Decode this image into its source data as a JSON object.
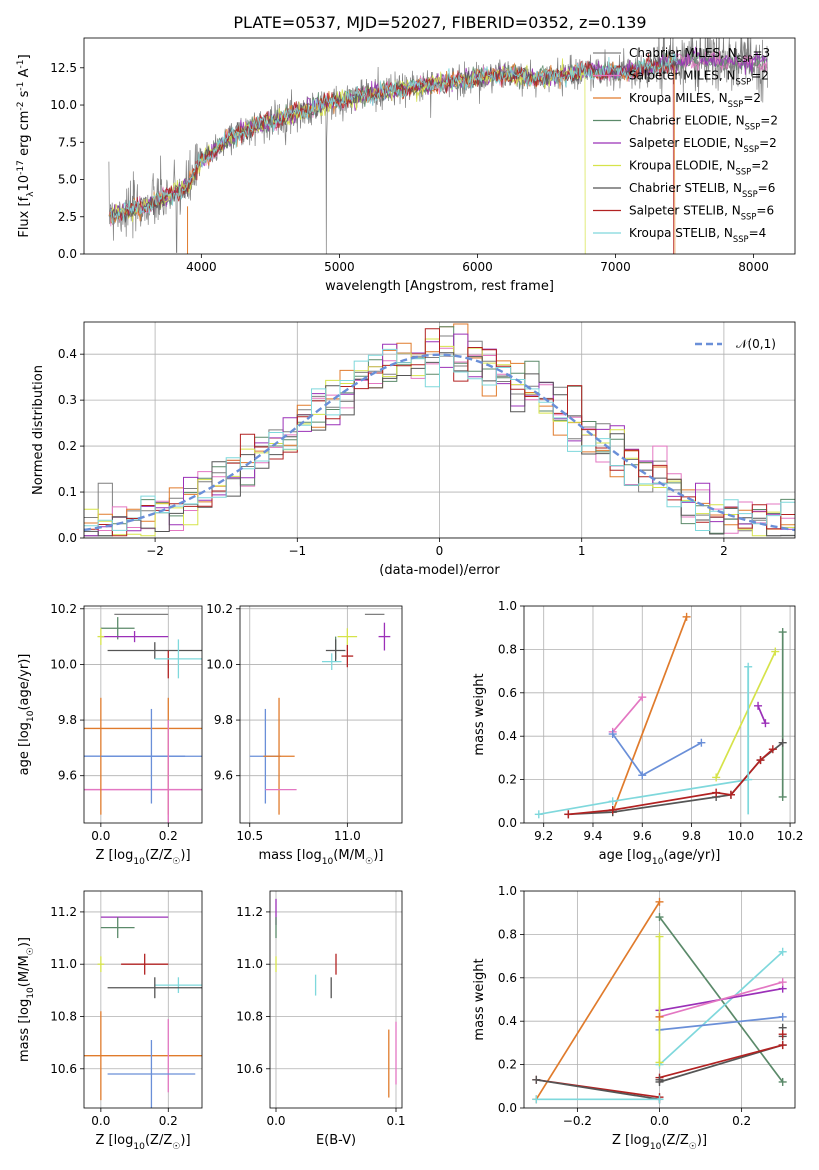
{
  "figure": {
    "title": "PLATE=0537, MJD=52027, FIBERID=0352, z=0.139"
  },
  "colors": {
    "Chabrier MILES": "#7f7f7f",
    "Salpeter MILES": "#e377c2",
    "Kroupa MILES": "#e07b2c",
    "Chabrier ELODIE": "#5b8a6a",
    "Salpeter ELODIE": "#9b30b8",
    "Kroupa ELODIE": "#d6e34a",
    "Chabrier STELIB": "#555555",
    "Salpeter STELIB": "#b22222",
    "Kroupa STELIB": "#7fd8dc",
    "normal_fit": "#6a8fd8"
  },
  "chart_data": [
    {
      "id": "spectrum",
      "type": "line",
      "xlabel": "wavelength [Angstrom, rest frame]",
      "ylabel": "Flux [f$_\\lambda$10$^{-17}$ erg cm$^{-2}$ s$^{-1}$ A$^{-1}$]",
      "xlim": [
        3150,
        8300
      ],
      "ylim": [
        0,
        14.5
      ],
      "xticks": [
        4000,
        5000,
        6000,
        7000,
        8000
      ],
      "yticks": [
        0.0,
        2.5,
        5.0,
        7.5,
        10.0,
        12.5
      ],
      "legend_position": "top-right",
      "legend": [
        "Chabrier MILES, N$_{SSP}$=3",
        "Salpeter MILES, N$_{SSP}$=2",
        "Kroupa MILES, N$_{SSP}$=2",
        "Chabrier ELODIE, N$_{SSP}$=2",
        "Salpeter ELODIE, N$_{SSP}$=2",
        "Kroupa ELODIE, N$_{SSP}$=2",
        "Chabrier STELIB, N$_{SSP}$=6",
        "Salpeter STELIB, N$_{SSP}$=6",
        "Kroupa STELIB, N$_{SSP}$=4"
      ],
      "continuum": {
        "x": [
          3330,
          3500,
          3700,
          3900,
          4000,
          4200,
          4400,
          4600,
          4800,
          5000,
          5200,
          5400,
          5600,
          5800,
          6000,
          6200,
          6400,
          6600,
          6800,
          7000,
          7200,
          7400,
          7600,
          7800,
          8000,
          8100
        ],
        "y": [
          2.7,
          2.9,
          3.6,
          4.6,
          6.2,
          7.8,
          8.6,
          9.2,
          9.8,
          10.3,
          10.7,
          11.0,
          11.3,
          11.5,
          11.8,
          12.1,
          11.8,
          12.0,
          12.3,
          12.2,
          12.4,
          12.8,
          13.1,
          12.9,
          12.9,
          12.8
        ]
      }
    },
    {
      "id": "residuals",
      "type": "histogram",
      "xlabel": "(data-model)/error",
      "ylabel": "Normed distribution",
      "xlim": [
        -2.5,
        2.5
      ],
      "ylim": [
        0,
        0.47
      ],
      "xticks": [
        -2,
        -1,
        0,
        1,
        2
      ],
      "yticks": [
        0.0,
        0.1,
        0.2,
        0.3,
        0.4
      ],
      "legend_position": "top-right",
      "legend": [
        "$\\mathcal{N}(0,1)$"
      ],
      "bins": 50
    },
    {
      "id": "age_vs_Z",
      "type": "errorbar",
      "xlabel": "Z [log$_{10}$(Z/Z$_\\odot$)]",
      "ylabel": "age  [log$_{10}$(age/yr)]",
      "xlim": [
        -0.05,
        0.3
      ],
      "ylim": [
        9.43,
        10.21
      ],
      "xticks": [
        0.0,
        0.2
      ],
      "yticks": [
        9.6,
        9.8,
        10.0,
        10.2
      ],
      "points": [
        {
          "model": "Chabrier MILES",
          "x": 0.12,
          "xerr": 0.08,
          "y": 10.18,
          "yerr": 0.0
        },
        {
          "model": "Salpeter MILES",
          "x": 0.2,
          "xerr": 0.0,
          "y": 9.55,
          "yerr": 0.12
        },
        {
          "model": "Kroupa MILES",
          "x": 0.0,
          "xerr": 0.0,
          "y": 9.67,
          "yerr": 0.21
        },
        {
          "model": "Chabrier ELODIE",
          "x": 0.05,
          "xerr": 0.05,
          "y": 10.13,
          "yerr": 0.04
        },
        {
          "model": "Salpeter ELODIE",
          "x": 0.1,
          "xerr": 0.1,
          "y": 10.1,
          "yerr": 0.02
        },
        {
          "model": "Kroupa ELODIE",
          "x": 0.0,
          "xerr": 0.01,
          "y": 10.1,
          "yerr": 0.03
        },
        {
          "model": "Chabrier STELIB",
          "x": 0.16,
          "xerr": 0.14,
          "y": 10.05,
          "yerr": 0.03
        },
        {
          "model": "Salpeter STELIB",
          "x": 0.2,
          "xerr": 0.0,
          "y": 10.0,
          "yerr": 0.05
        },
        {
          "model": "Kroupa STELIB",
          "x": 0.23,
          "xerr": 0.07,
          "y": 10.02,
          "yerr": 0.07
        },
        {
          "model": "normal_fit",
          "x": 0.15,
          "xerr": 0.15,
          "y": 9.67,
          "yerr": 0.17
        },
        {
          "model": "Kroupa MILES",
          "x": 0.2,
          "xerr": 0.0,
          "y": 9.67,
          "yerr": 0.21
        },
        {
          "model": "Salpeter MILES",
          "x": 0.2,
          "xerr": 0.0,
          "y": 9.62,
          "yerr": 0.18
        }
      ],
      "xlines": [
        {
          "model": "Kroupa MILES",
          "y": 9.77,
          "x0": -0.05,
          "x1": 0.3
        },
        {
          "model": "normal_fit",
          "y": 9.67,
          "x0": -0.05,
          "x1": 0.25
        },
        {
          "model": "Salpeter MILES",
          "y": 9.55,
          "x0": -0.05,
          "x1": 0.3
        }
      ]
    },
    {
      "id": "age_vs_mass",
      "type": "errorbar",
      "xlabel": "mass [log$_{10}$(M/M$_\\odot$)]",
      "ylabel": "",
      "xlim": [
        10.45,
        11.28
      ],
      "ylim": [
        9.43,
        10.21
      ],
      "xticks": [
        10.5,
        11.0
      ],
      "yticks": [
        9.6,
        9.8,
        10.0,
        10.2
      ],
      "points": [
        {
          "model": "Chabrier MILES",
          "x": 11.14,
          "xerr": 0.05,
          "y": 10.18,
          "yerr": 0.0
        },
        {
          "model": "Salpeter ELODIE",
          "x": 11.19,
          "xerr": 0.03,
          "y": 10.1,
          "yerr": 0.05
        },
        {
          "model": "Kroupa ELODIE",
          "x": 11.0,
          "xerr": 0.05,
          "y": 10.1,
          "yerr": 0.03
        },
        {
          "model": "Chabrier ELODIE",
          "x": 10.94,
          "xerr": 0.0,
          "y": 10.06,
          "yerr": 0.04
        },
        {
          "model": "Chabrier STELIB",
          "x": 10.94,
          "xerr": 0.05,
          "y": 10.05,
          "yerr": 0.04
        },
        {
          "model": "Salpeter STELIB",
          "x": 11.0,
          "xerr": 0.03,
          "y": 10.03,
          "yerr": 0.04
        },
        {
          "model": "Kroupa STELIB",
          "x": 10.92,
          "xerr": 0.05,
          "y": 10.01,
          "yerr": 0.03
        },
        {
          "model": "normal_fit",
          "x": 10.58,
          "xerr": 0.08,
          "y": 9.67,
          "yerr": 0.17
        },
        {
          "model": "Kroupa MILES",
          "x": 10.65,
          "xerr": 0.08,
          "y": 9.67,
          "yerr": 0.21
        },
        {
          "model": "Salpeter MILES",
          "x": 10.66,
          "xerr": 0.08,
          "y": 9.55,
          "yerr": 0.0
        }
      ]
    },
    {
      "id": "weight_vs_age",
      "type": "line",
      "xlabel": "age  [log$_{10}$(age/yr)]",
      "ylabel": "mass weight",
      "xlim": [
        9.12,
        10.22
      ],
      "ylim": [
        0,
        1.0
      ],
      "xticks": [
        9.2,
        9.4,
        9.6,
        9.8,
        10.0,
        10.2
      ],
      "yticks": [
        0.0,
        0.2,
        0.4,
        0.6,
        0.8,
        1.0
      ],
      "series": [
        {
          "model": "Salpeter MILES",
          "x": [
            9.48,
            9.6
          ],
          "y": [
            0.42,
            0.58
          ]
        },
        {
          "model": "Kroupa MILES",
          "x": [
            9.48,
            9.78
          ],
          "y": [
            0.05,
            0.95
          ]
        },
        {
          "model": "normal_fit",
          "x": [
            9.48,
            9.6,
            9.84
          ],
          "y": [
            0.41,
            0.22,
            0.37
          ]
        },
        {
          "model": "Kroupa STELIB",
          "x": [
            9.18,
            9.48,
            10.03,
            10.03
          ],
          "y": [
            0.04,
            0.1,
            0.2,
            0.72
          ]
        },
        {
          "model": "Kroupa ELODIE",
          "x": [
            9.9,
            10.14
          ],
          "y": [
            0.21,
            0.79
          ]
        },
        {
          "model": "Salpeter ELODIE",
          "x": [
            10.07,
            10.1
          ],
          "y": [
            0.54,
            0.46
          ]
        },
        {
          "model": "Chabrier ELODIE",
          "x": [
            10.17,
            10.17
          ],
          "y": [
            0.12,
            0.88
          ]
        },
        {
          "model": "Chabrier STELIB",
          "x": [
            9.3,
            9.48,
            9.9,
            9.96,
            10.08,
            10.17
          ],
          "y": [
            0.04,
            0.05,
            0.12,
            0.13,
            0.29,
            0.37
          ]
        },
        {
          "model": "Salpeter STELIB",
          "x": [
            9.3,
            9.48,
            9.9,
            9.96,
            10.08,
            10.13
          ],
          "y": [
            0.04,
            0.06,
            0.14,
            0.13,
            0.29,
            0.34
          ]
        }
      ],
      "vlines": [
        {
          "model": "Kroupa STELIB",
          "x": 10.03,
          "y0": 0.04,
          "y1": 0.72
        }
      ]
    },
    {
      "id": "mass_vs_Z",
      "type": "errorbar",
      "xlabel": "Z [log$_{10}$(Z/Z$_\\odot$)]",
      "ylabel": "mass [log$_{10}$(M/M$_\\odot$)]",
      "xlim": [
        -0.05,
        0.3
      ],
      "ylim": [
        10.45,
        11.28
      ],
      "xticks": [
        0.0,
        0.2
      ],
      "yticks": [
        10.6,
        10.8,
        11.0,
        11.2
      ],
      "points": [
        {
          "model": "Salpeter ELODIE",
          "x": 0.1,
          "xerr": 0.1,
          "y": 11.18,
          "yerr": 0.0
        },
        {
          "model": "Chabrier ELODIE",
          "x": 0.05,
          "xerr": 0.05,
          "y": 11.14,
          "yerr": 0.04
        },
        {
          "model": "Kroupa ELODIE",
          "x": 0.0,
          "xerr": 0.01,
          "y": 11.0,
          "yerr": 0.03
        },
        {
          "model": "Salpeter STELIB",
          "x": 0.13,
          "xerr": 0.07,
          "y": 11.0,
          "yerr": 0.04
        },
        {
          "model": "Kroupa STELIB",
          "x": 0.23,
          "xerr": 0.07,
          "y": 10.92,
          "yerr": 0.03
        },
        {
          "model": "Chabrier STELIB",
          "x": 0.16,
          "xerr": 0.14,
          "y": 10.91,
          "yerr": 0.04
        },
        {
          "model": "Kroupa MILES",
          "x": 0.0,
          "xerr": 0.3,
          "y": 10.65,
          "yerr": 0.17
        },
        {
          "model": "Salpeter MILES",
          "x": 0.2,
          "xerr": 0.0,
          "y": 10.65,
          "yerr": 0.14
        },
        {
          "model": "normal_fit",
          "x": 0.15,
          "xerr": 0.13,
          "y": 10.58,
          "yerr": 0.13
        }
      ]
    },
    {
      "id": "mass_vs_EBV",
      "type": "errorbar",
      "xlabel": "E(B-V)",
      "ylabel": "",
      "xlim": [
        -0.005,
        0.105
      ],
      "ylim": [
        10.45,
        11.28
      ],
      "xticks": [
        0.0,
        0.1
      ],
      "yticks": [
        10.6,
        10.8,
        11.0,
        11.2
      ],
      "points": [
        {
          "model": "Salpeter ELODIE",
          "x": 0.0,
          "xerr": 0.0,
          "y": 11.2,
          "yerr": 0.05
        },
        {
          "model": "Chabrier ELODIE",
          "x": 0.0,
          "xerr": 0.0,
          "y": 11.14,
          "yerr": 0.04
        },
        {
          "model": "Kroupa ELODIE",
          "x": 0.0,
          "xerr": 0.0,
          "y": 11.0,
          "yerr": 0.03
        },
        {
          "model": "Kroupa STELIB",
          "x": 0.033,
          "xerr": 0.0,
          "y": 10.92,
          "yerr": 0.04
        },
        {
          "model": "Salpeter STELIB",
          "x": 0.05,
          "xerr": 0.0,
          "y": 11.0,
          "yerr": 0.04
        },
        {
          "model": "Chabrier STELIB",
          "x": 0.046,
          "xerr": 0.0,
          "y": 10.91,
          "yerr": 0.04
        },
        {
          "model": "Kroupa MILES",
          "x": 0.094,
          "xerr": 0.0,
          "y": 10.62,
          "yerr": 0.13
        },
        {
          "model": "Salpeter MILES",
          "x": 0.1,
          "xerr": 0.0,
          "y": 10.66,
          "yerr": 0.12
        }
      ]
    },
    {
      "id": "weight_vs_Z",
      "type": "line",
      "xlabel": "Z [log$_{10}$(Z/Z$_\\odot$)]",
      "ylabel": "mass weight",
      "xlim": [
        -0.33,
        0.33
      ],
      "ylim": [
        0,
        1.0
      ],
      "xticks": [
        -0.2,
        0.0,
        0.2
      ],
      "yticks": [
        0.0,
        0.2,
        0.4,
        0.6,
        0.8,
        1.0
      ],
      "series": [
        {
          "model": "Kroupa MILES",
          "x": [
            -0.3,
            0.0
          ],
          "y": [
            0.04,
            0.95
          ]
        },
        {
          "model": "Chabrier ELODIE",
          "x": [
            0.0,
            0.3
          ],
          "y": [
            0.88,
            0.12
          ]
        },
        {
          "model": "Kroupa STELIB",
          "x": [
            0.0,
            0.3
          ],
          "y": [
            0.2,
            0.72
          ]
        },
        {
          "model": "Salpeter ELODIE",
          "x": [
            0.0,
            0.3
          ],
          "y": [
            0.45,
            0.55
          ]
        },
        {
          "model": "Salpeter MILES",
          "x": [
            0.0,
            0.3
          ],
          "y": [
            0.42,
            0.58
          ]
        },
        {
          "model": "normal_fit",
          "x": [
            0.0,
            0.3
          ],
          "y": [
            0.36,
            0.42
          ]
        },
        {
          "model": "Chabrier STELIB",
          "x": [
            0.0,
            0.3
          ],
          "y": [
            0.12,
            0.29
          ]
        },
        {
          "model": "Salpeter STELIB",
          "x": [
            0.0,
            0.3
          ],
          "y": [
            0.14,
            0.29
          ]
        },
        {
          "model": "Salpeter STELIB",
          "x": [
            -0.3,
            0.0
          ],
          "y": [
            0.13,
            0.05
          ]
        },
        {
          "model": "Chabrier STELIB",
          "x": [
            -0.3,
            0.0
          ],
          "y": [
            0.13,
            0.04
          ]
        },
        {
          "model": "Kroupa STELIB",
          "x": [
            -0.3,
            0.0
          ],
          "y": [
            0.04,
            0.04
          ]
        },
        {
          "model": "Kroupa ELODIE",
          "x": [
            0.0,
            0.0
          ],
          "y": [
            0.21,
            0.79
          ]
        }
      ],
      "markers": [
        {
          "model": "Chabrier STELIB",
          "x": 0.3,
          "y": 0.37
        },
        {
          "model": "Chabrier STELIB",
          "x": 0.3,
          "y": 0.33
        },
        {
          "model": "Salpeter STELIB",
          "x": 0.3,
          "y": 0.34
        },
        {
          "model": "Chabrier STELIB",
          "x": 0.0,
          "y": 0.13
        },
        {
          "model": "Kroupa MILES",
          "x": 0.0,
          "y": 0.42
        }
      ]
    }
  ]
}
